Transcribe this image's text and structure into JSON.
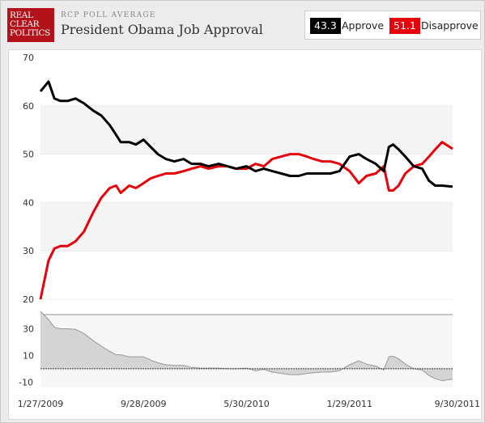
{
  "header": {
    "logo": [
      "REAL",
      "CLEAR",
      "POLITICS"
    ],
    "subtitle": "RCP POLL AVERAGE",
    "title": "President Obama Job Approval"
  },
  "legend": {
    "approve_value": "43.3",
    "approve_label": "Approve",
    "disapprove_value": "51.1",
    "disapprove_label": "Disapprove"
  },
  "colors": {
    "approve": "#000000",
    "disapprove": "#e8000b",
    "spread_fill": "#d4d4d4",
    "spread_line": "#999999",
    "grid_band": "#f4f4f4"
  },
  "chart_data": [
    {
      "type": "line",
      "title": "President Obama Job Approval",
      "x_range": [
        "2009-01-27",
        "2011-09-30"
      ],
      "x_tick_labels": [
        "1/27/2009",
        "9/28/2009",
        "5/30/2010",
        "1/29/2011",
        "9/30/2011"
      ],
      "ylim": [
        17,
        70
      ],
      "y_ticks": [
        20,
        30,
        40,
        50,
        60,
        70
      ],
      "grid": true,
      "legend_position": "top-right",
      "x": [
        "2009-01-27",
        "2009-02-15",
        "2009-03-01",
        "2009-03-15",
        "2009-04-01",
        "2009-04-20",
        "2009-05-10",
        "2009-06-01",
        "2009-06-20",
        "2009-07-10",
        "2009-07-25",
        "2009-08-05",
        "2009-08-25",
        "2009-09-10",
        "2009-09-28",
        "2009-10-15",
        "2009-11-01",
        "2009-11-20",
        "2009-12-10",
        "2010-01-01",
        "2010-01-20",
        "2010-02-10",
        "2010-03-01",
        "2010-03-25",
        "2010-04-15",
        "2010-05-05",
        "2010-05-30",
        "2010-06-20",
        "2010-07-10",
        "2010-07-30",
        "2010-08-20",
        "2010-09-10",
        "2010-10-01",
        "2010-10-20",
        "2010-11-05",
        "2010-11-25",
        "2010-12-15",
        "2011-01-05",
        "2011-01-29",
        "2011-02-20",
        "2011-03-10",
        "2011-04-01",
        "2011-04-20",
        "2011-05-02",
        "2011-05-12",
        "2011-05-25",
        "2011-06-10",
        "2011-06-30",
        "2011-07-20",
        "2011-08-05",
        "2011-08-20",
        "2011-09-05",
        "2011-09-30"
      ],
      "series": [
        {
          "name": "Approve",
          "values": [
            63.0,
            65.0,
            61.5,
            61.0,
            61.0,
            61.5,
            60.5,
            59.0,
            58.0,
            56.0,
            54.0,
            52.5,
            52.5,
            52.0,
            53.0,
            51.5,
            50.0,
            49.0,
            48.5,
            49.0,
            48.0,
            48.0,
            47.5,
            48.0,
            47.5,
            47.0,
            47.5,
            46.5,
            47.0,
            46.5,
            46.0,
            45.5,
            45.5,
            46.0,
            46.0,
            46.0,
            46.0,
            46.5,
            49.5,
            50.0,
            49.0,
            48.0,
            46.5,
            51.5,
            52.0,
            51.0,
            49.5,
            47.5,
            47.0,
            44.5,
            43.5,
            43.5,
            43.3
          ]
        },
        {
          "name": "Disapprove",
          "values": [
            20.0,
            28.0,
            30.5,
            31.0,
            31.0,
            32.0,
            34.0,
            38.0,
            41.0,
            43.0,
            43.5,
            42.0,
            43.5,
            43.0,
            44.0,
            45.0,
            45.5,
            46.0,
            46.0,
            46.5,
            47.0,
            47.5,
            47.0,
            47.5,
            47.5,
            47.0,
            47.0,
            48.0,
            47.5,
            49.0,
            49.5,
            50.0,
            50.0,
            49.5,
            49.0,
            48.5,
            48.5,
            48.0,
            46.5,
            44.0,
            45.5,
            46.0,
            47.5,
            42.5,
            42.5,
            43.5,
            46.0,
            47.5,
            48.0,
            49.5,
            51.0,
            52.5,
            51.1
          ]
        }
      ]
    },
    {
      "type": "area",
      "name": "spread",
      "x_range": [
        "2009-01-27",
        "2011-09-30"
      ],
      "ylim": [
        -14,
        40
      ],
      "y_ticks": [
        30,
        10,
        -10
      ],
      "baseline": 0,
      "x": [
        "2009-01-27",
        "2009-02-15",
        "2009-03-01",
        "2009-03-15",
        "2009-04-01",
        "2009-04-20",
        "2009-05-10",
        "2009-06-01",
        "2009-06-20",
        "2009-07-10",
        "2009-07-25",
        "2009-08-05",
        "2009-08-25",
        "2009-09-10",
        "2009-09-28",
        "2009-10-15",
        "2009-11-01",
        "2009-11-20",
        "2009-12-10",
        "2010-01-01",
        "2010-01-20",
        "2010-02-10",
        "2010-03-01",
        "2010-03-25",
        "2010-04-15",
        "2010-05-05",
        "2010-05-30",
        "2010-06-20",
        "2010-07-10",
        "2010-07-30",
        "2010-08-20",
        "2010-09-10",
        "2010-10-01",
        "2010-10-20",
        "2010-11-05",
        "2010-11-25",
        "2010-12-15",
        "2011-01-05",
        "2011-01-29",
        "2011-02-20",
        "2011-03-10",
        "2011-04-01",
        "2011-04-20",
        "2011-05-02",
        "2011-05-12",
        "2011-05-25",
        "2011-06-10",
        "2011-06-30",
        "2011-07-20",
        "2011-08-05",
        "2011-08-20",
        "2011-09-05",
        "2011-09-30"
      ],
      "values": [
        43.0,
        37.0,
        31.0,
        30.0,
        30.0,
        29.5,
        26.5,
        21.0,
        17.0,
        13.0,
        10.5,
        10.5,
        9.0,
        9.0,
        9.0,
        6.5,
        4.5,
        3.0,
        2.5,
        2.5,
        1.0,
        0.5,
        0.5,
        0.5,
        0.0,
        0.0,
        0.5,
        -1.5,
        -0.5,
        -2.5,
        -3.5,
        -4.5,
        -4.5,
        -3.5,
        -3.0,
        -2.5,
        -2.5,
        -1.5,
        3.0,
        6.0,
        3.5,
        2.0,
        -1.0,
        9.0,
        9.5,
        7.5,
        3.5,
        0.0,
        -1.0,
        -5.0,
        -7.5,
        -9.0,
        -7.8
      ]
    }
  ]
}
